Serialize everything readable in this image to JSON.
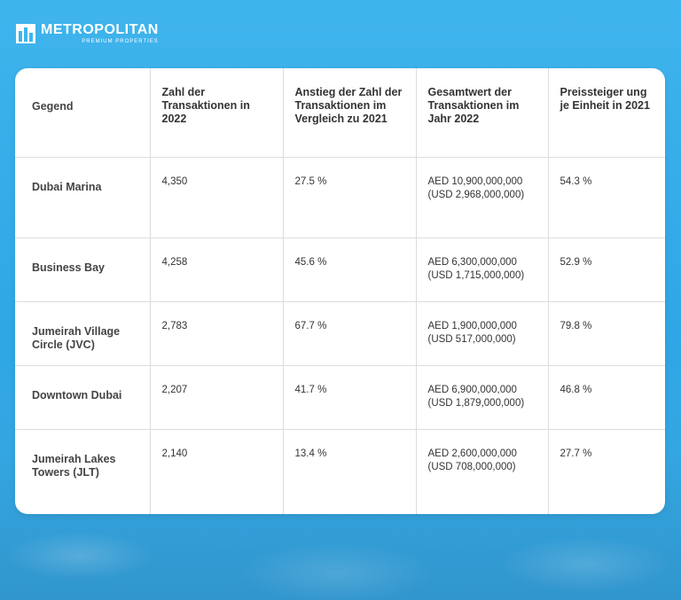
{
  "brand": {
    "name": "METROPOLITAN",
    "tagline": "PREMIUM PROPERTIES"
  },
  "table": {
    "headers": [
      "Gegend",
      "Zahl der Transaktionen in 2022",
      "Anstieg der Zahl der Transaktionen im Vergleich zu 2021",
      "Gesamtwert der Transaktionen im Jahr 2022",
      "Preissteiger ung je Einheit in 2021"
    ],
    "rows": [
      {
        "region": "Dubai Marina",
        "count": "4,350",
        "increase": "27.5 %",
        "value_aed": "AED 10,900,000,000",
        "value_usd": "(USD 2,968,000,000)",
        "price_increase": "54.3 %"
      },
      {
        "region": "Business Bay",
        "count": "4,258",
        "increase": "45.6 %",
        "value_aed": "AED 6,300,000,000",
        "value_usd": "(USD 1,715,000,000)",
        "price_increase": "52.9 %"
      },
      {
        "region": "Jumeirah Village Circle (JVC)",
        "count": "2,783",
        "increase": "67.7 %",
        "value_aed": "AED 1,900,000,000",
        "value_usd": "(USD 517,000,000)",
        "price_increase": "79.8 %"
      },
      {
        "region": "Downtown Dubai",
        "count": "2,207",
        "increase": "41.7 %",
        "value_aed": "AED 6,900,000,000",
        "value_usd": "(USD 1,879,000,000)",
        "price_increase": "46.8 %"
      },
      {
        "region": "Jumeirah Lakes Towers (JLT)",
        "count": "2,140",
        "increase": "13.4 %",
        "value_aed": "AED 2,600,000,000",
        "value_usd": "(USD 708,000,000)",
        "price_increase": "27.7 %"
      }
    ]
  }
}
